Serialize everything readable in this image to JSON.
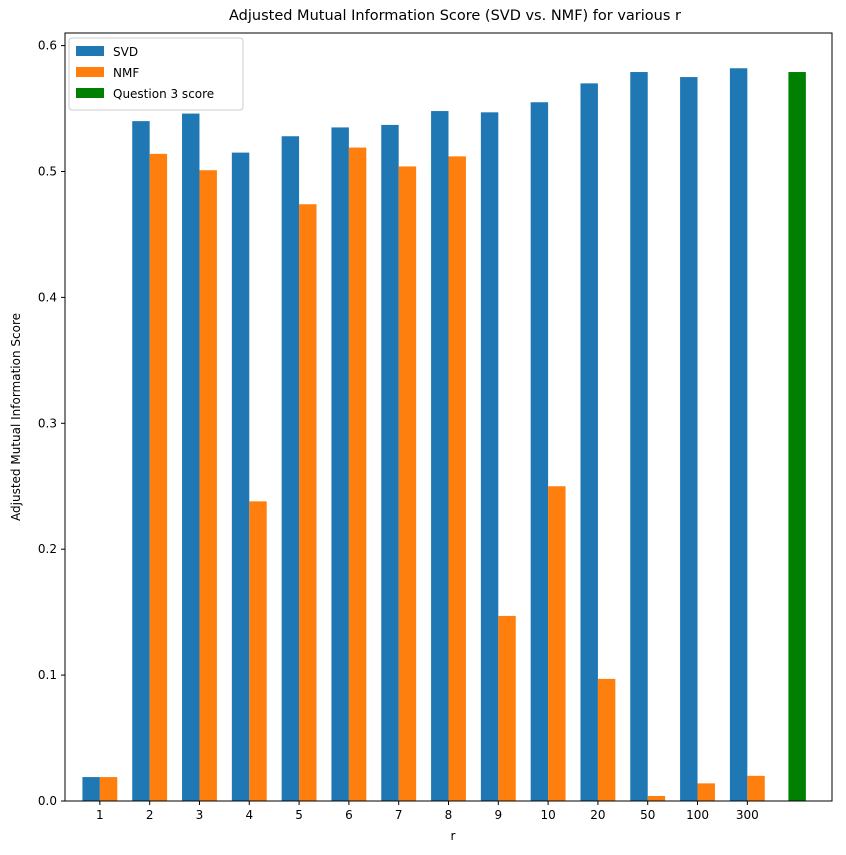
{
  "chart_data": {
    "type": "bar",
    "title": "Adjusted Mutual Information Score (SVD vs. NMF) for various r",
    "xlabel": "r",
    "ylabel": "Adjusted Mutual Information Score",
    "categories": [
      "1",
      "2",
      "3",
      "4",
      "5",
      "6",
      "7",
      "8",
      "9",
      "10",
      "20",
      "50",
      "100",
      "300"
    ],
    "ylim": [
      0,
      0.61
    ],
    "yticks": [
      "0.0",
      "0.1",
      "0.2",
      "0.3",
      "0.4",
      "0.5",
      "0.6"
    ],
    "series": [
      {
        "name": "SVD",
        "color": "#1f77b4",
        "values": [
          0.019,
          0.54,
          0.546,
          0.515,
          0.528,
          0.535,
          0.537,
          0.548,
          0.547,
          0.555,
          0.57,
          0.579,
          0.575,
          0.582
        ]
      },
      {
        "name": "NMF",
        "color": "#ff7f0e",
        "values": [
          0.019,
          0.514,
          0.501,
          0.238,
          0.474,
          0.519,
          0.504,
          0.512,
          0.147,
          0.25,
          0.097,
          0.004,
          0.014,
          0.02
        ]
      }
    ],
    "extra_bar": {
      "name": "Question 3 score",
      "color": "#008000",
      "value": 0.579
    },
    "legend_position": "upper-left",
    "grid": false
  }
}
